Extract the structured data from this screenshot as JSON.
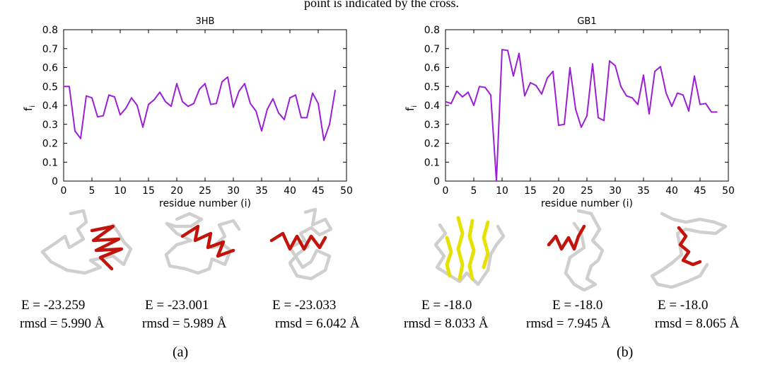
{
  "top_caption": "point is indicated by the cross.",
  "chart_data": [
    {
      "type": "line",
      "title": "3HB",
      "xlabel": "residue number (i)",
      "ylabel": "f",
      "ylabel_sub": "i",
      "xlim": [
        0,
        50
      ],
      "ylim": [
        0,
        0.8
      ],
      "xticks": [
        0,
        5,
        10,
        15,
        20,
        25,
        30,
        35,
        40,
        45,
        50
      ],
      "yticks": [
        0,
        0.1,
        0.2,
        0.3,
        0.4,
        0.5,
        0.6,
        0.7,
        0.8
      ],
      "color": "#9b1fd6",
      "x": [
        0,
        1,
        2,
        3,
        4,
        5,
        6,
        7,
        8,
        9,
        10,
        11,
        12,
        13,
        14,
        15,
        16,
        17,
        18,
        19,
        20,
        21,
        22,
        23,
        24,
        25,
        26,
        27,
        28,
        29,
        30,
        31,
        32,
        33,
        34,
        35,
        36,
        37,
        38,
        39,
        40,
        41,
        42,
        43,
        44,
        45,
        46,
        47,
        48
      ],
      "values": [
        0.5,
        0.5,
        0.265,
        0.225,
        0.45,
        0.44,
        0.34,
        0.345,
        0.455,
        0.445,
        0.35,
        0.385,
        0.44,
        0.4,
        0.285,
        0.405,
        0.43,
        0.47,
        0.42,
        0.395,
        0.515,
        0.42,
        0.395,
        0.41,
        0.485,
        0.515,
        0.405,
        0.41,
        0.525,
        0.55,
        0.39,
        0.475,
        0.515,
        0.41,
        0.37,
        0.265,
        0.38,
        0.435,
        0.36,
        0.325,
        0.44,
        0.455,
        0.335,
        0.335,
        0.465,
        0.41,
        0.215,
        0.3,
        0.48
      ]
    },
    {
      "type": "line",
      "title": "GB1",
      "xlabel": "residue number (i)",
      "ylabel": "f",
      "ylabel_sub": "i",
      "xlim": [
        0,
        50
      ],
      "ylim": [
        0,
        0.8
      ],
      "xticks": [
        0,
        5,
        10,
        15,
        20,
        25,
        30,
        35,
        40,
        45,
        50
      ],
      "yticks": [
        0,
        0.1,
        0.2,
        0.3,
        0.4,
        0.5,
        0.6,
        0.7,
        0.8
      ],
      "color": "#9b1fd6",
      "x": [
        0,
        1,
        2,
        3,
        4,
        5,
        6,
        7,
        8,
        9,
        10,
        11,
        12,
        13,
        14,
        15,
        16,
        17,
        18,
        19,
        20,
        21,
        22,
        23,
        24,
        25,
        26,
        27,
        28,
        29,
        30,
        31,
        32,
        33,
        34,
        35,
        36,
        37,
        38,
        39,
        40,
        41,
        42,
        43,
        44,
        45,
        46,
        47,
        48
      ],
      "values": [
        0.42,
        0.41,
        0.475,
        0.445,
        0.47,
        0.4,
        0.5,
        0.495,
        0.455,
        0.0,
        0.695,
        0.69,
        0.555,
        0.675,
        0.45,
        0.52,
        0.505,
        0.46,
        0.545,
        0.58,
        0.295,
        0.3,
        0.6,
        0.38,
        0.285,
        0.345,
        0.62,
        0.335,
        0.32,
        0.635,
        0.61,
        0.5,
        0.45,
        0.44,
        0.405,
        0.56,
        0.355,
        0.58,
        0.605,
        0.465,
        0.395,
        0.465,
        0.455,
        0.37,
        0.555,
        0.405,
        0.41,
        0.365,
        0.365
      ]
    }
  ],
  "structures": [
    {
      "energy": "E = -23.259",
      "rmsd": "rmsd = 5.990 Å"
    },
    {
      "energy": "E = -23.001",
      "rmsd": "rmsd = 5.989 Å"
    },
    {
      "energy": "E = -23.033",
      "rmsd": "rmsd = 6.042 Å"
    },
    {
      "energy": "E = -18.0",
      "rmsd": "rmsd = 8.033 Å"
    },
    {
      "energy": "E = -18.0",
      "rmsd": "rmsd = 7.945 Å"
    },
    {
      "energy": "E = -18.0",
      "rmsd": "rmsd = 8.065 Å"
    }
  ],
  "panel_labels": [
    "(a)",
    "(b)"
  ],
  "colors": {
    "helix": "#c0140c",
    "strand": "#e8e000",
    "coil": "#cfcfcf"
  }
}
